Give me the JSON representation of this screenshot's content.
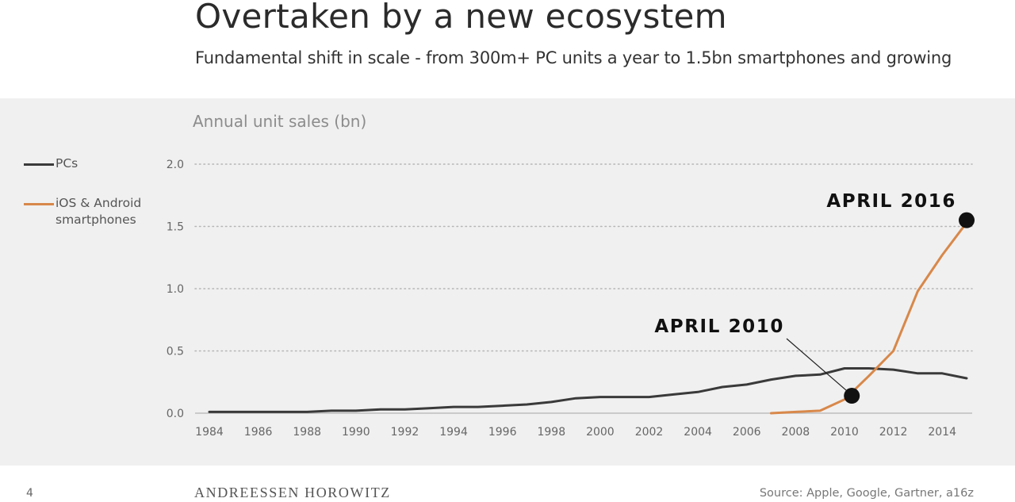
{
  "header": {
    "title": "Overtaken by a new ecosystem",
    "subtitle": "Fundamental shift in scale - from 300m+ PC units a year to 1.5bn smartphones and growing"
  },
  "footer": {
    "page_number": "4",
    "brand": "ANDREESSEN HOROWITZ",
    "source": "Source: Apple, Google, Gartner, a16z"
  },
  "chart_data": {
    "type": "line",
    "title": "",
    "ylabel": "Annual unit sales (bn)",
    "xlabel": "",
    "ylim": [
      0,
      2.0
    ],
    "xlim": [
      1984,
      2015
    ],
    "yticks": [
      "0.0",
      "0.5",
      "1.0",
      "1.5",
      "2.0"
    ],
    "xticks": [
      "1984",
      "1986",
      "1988",
      "1990",
      "1992",
      "1994",
      "1996",
      "1998",
      "2000",
      "2002",
      "2004",
      "2006",
      "2008",
      "2010",
      "2012",
      "2014"
    ],
    "grid": "horizontal dotted",
    "legend_position": "left",
    "series": [
      {
        "name": "PCs",
        "color": "#3a3a3a",
        "points": [
          [
            1984,
            0.01
          ],
          [
            1985,
            0.01
          ],
          [
            1986,
            0.01
          ],
          [
            1987,
            0.01
          ],
          [
            1988,
            0.01
          ],
          [
            1989,
            0.02
          ],
          [
            1990,
            0.02
          ],
          [
            1991,
            0.03
          ],
          [
            1992,
            0.03
          ],
          [
            1993,
            0.04
          ],
          [
            1994,
            0.05
          ],
          [
            1995,
            0.05
          ],
          [
            1996,
            0.06
          ],
          [
            1997,
            0.07
          ],
          [
            1998,
            0.09
          ],
          [
            1999,
            0.12
          ],
          [
            2000,
            0.13
          ],
          [
            2001,
            0.13
          ],
          [
            2002,
            0.13
          ],
          [
            2003,
            0.15
          ],
          [
            2004,
            0.17
          ],
          [
            2005,
            0.21
          ],
          [
            2006,
            0.23
          ],
          [
            2007,
            0.27
          ],
          [
            2008,
            0.3
          ],
          [
            2009,
            0.31
          ],
          [
            2010,
            0.36
          ],
          [
            2011,
            0.36
          ],
          [
            2012,
            0.35
          ],
          [
            2013,
            0.32
          ],
          [
            2014,
            0.32
          ],
          [
            2015,
            0.28
          ]
        ]
      },
      {
        "name": "iOS & Android smartphones",
        "legend_lines": [
          "iOS & Android",
          "smartphones"
        ],
        "color": "#d8884a",
        "points": [
          [
            2007,
            0.0
          ],
          [
            2008,
            0.01
          ],
          [
            2009,
            0.02
          ],
          [
            2010,
            0.11
          ],
          [
            2011,
            0.3
          ],
          [
            2012,
            0.5
          ],
          [
            2013,
            0.98
          ],
          [
            2014,
            1.27
          ],
          [
            2015,
            1.53
          ]
        ]
      }
    ],
    "annotations": [
      {
        "label": "APRIL 2010",
        "point": [
          2010.3,
          0.14
        ]
      },
      {
        "label": "APRIL 2016",
        "point": [
          2015.0,
          1.55
        ]
      }
    ]
  }
}
